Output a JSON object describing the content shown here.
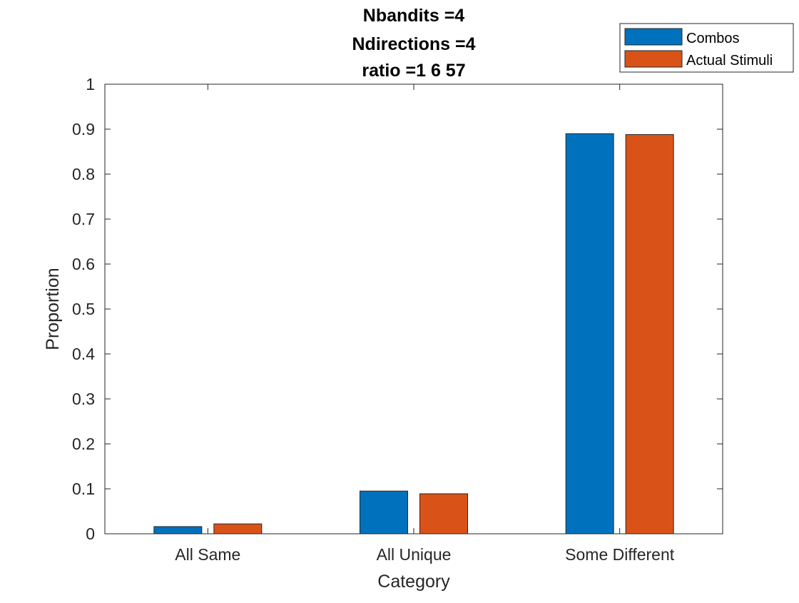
{
  "chart_data": {
    "type": "bar",
    "title_lines": [
      "Nbandits =4",
      "Ndirections =4",
      "ratio =1   6  57"
    ],
    "xlabel": "Category",
    "ylabel": "Proportion",
    "categories": [
      "All Same",
      "All Unique",
      "Some Different"
    ],
    "series": [
      {
        "name": "Combos",
        "values": [
          0.016,
          0.095,
          0.89
        ],
        "color": "#0072BD"
      },
      {
        "name": "Actual Stimuli",
        "values": [
          0.022,
          0.089,
          0.888
        ],
        "color": "#D95319"
      }
    ],
    "ylim": [
      0,
      1
    ],
    "yticks": [
      0,
      0.1,
      0.2,
      0.3,
      0.4,
      0.5,
      0.6,
      0.7,
      0.8,
      0.9,
      1
    ],
    "ytick_labels": [
      "0",
      "0.1",
      "0.2",
      "0.3",
      "0.4",
      "0.5",
      "0.6",
      "0.7",
      "0.8",
      "0.9",
      "1"
    ],
    "grid": false,
    "legend_position": "top-right"
  }
}
